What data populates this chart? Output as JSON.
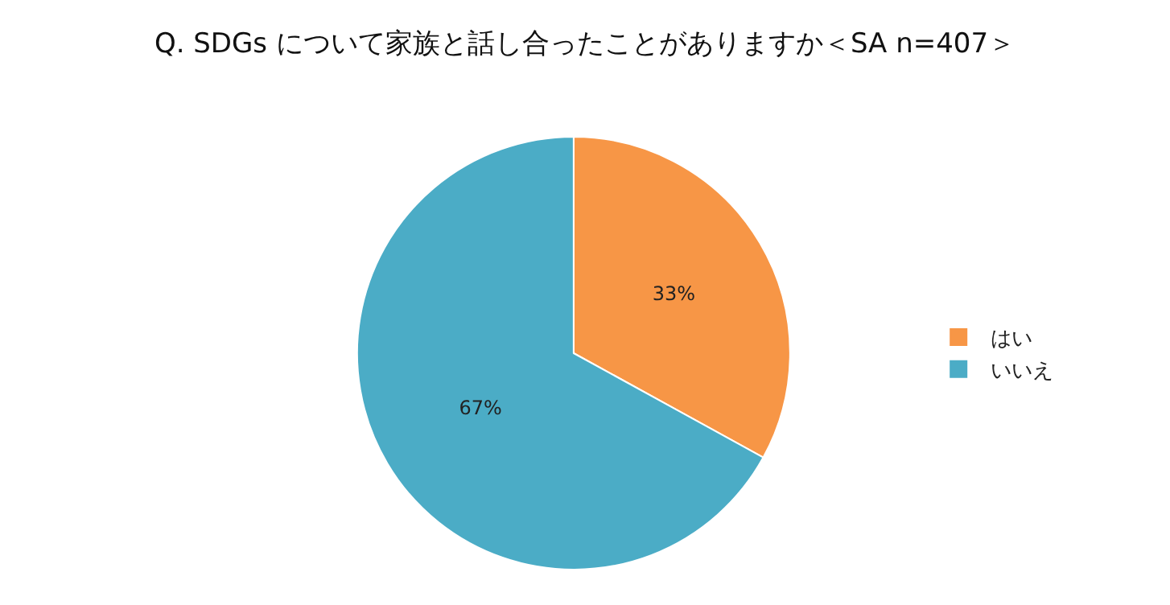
{
  "chart_data": {
    "type": "pie",
    "title": "Q. SDGs について家族と話し合ったことがありますか＜SA n=407＞",
    "categories": [
      "はい",
      "いいえ"
    ],
    "values": [
      33,
      67
    ],
    "colors": [
      "#f79646",
      "#4bacc6"
    ],
    "value_labels": [
      "33%",
      "67%"
    ],
    "legend": "right"
  }
}
